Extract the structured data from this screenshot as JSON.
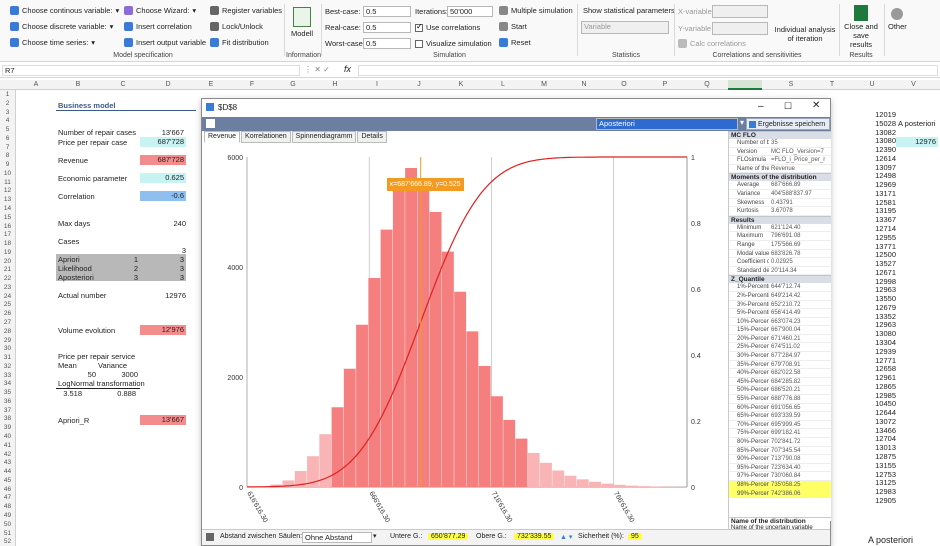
{
  "ribbon": {
    "model_spec": {
      "continuous": "Choose continous variable:",
      "discrete": "Choose discrete variable:",
      "time_series": "Choose time series:",
      "wizard": "Choose Wizard:",
      "insert_correlation": "Insert correlation",
      "insert_output": "Insert output variable",
      "register": "Register variables",
      "lock": "Lock/Unlock",
      "fit": "Fit distribution",
      "label": "Model specification"
    },
    "information": {
      "model": "Modell",
      "label": "Information"
    },
    "simulation": {
      "best_case_label": "Best-case:",
      "best_case": "0.5",
      "real_case_label": "Real-case:",
      "real_case": "0.5",
      "worst_case_label": "Worst-case:",
      "worst_case": "0.5",
      "iterations_label": "Iterations:",
      "iterations": "50'000",
      "use_corr": "Use correlations",
      "visualize": "Visualize simulation",
      "multiple": "Multiple simulation",
      "start": "Start",
      "reset": "Reset",
      "label": "Simulation"
    },
    "statistics": {
      "show_params": "Show statistical parameters",
      "variable_ph": "Variable",
      "label": "Statistics"
    },
    "corr": {
      "x_var": "X-variable",
      "y_var": "Y-variable",
      "calc": "Calc correlations",
      "label": "Correlations and sensitivities"
    },
    "results": {
      "individual": "Individual analysis of iteration",
      "close_save": "Close and save results",
      "other": "Other",
      "label": "Results"
    }
  },
  "formula_bar": {
    "name_box": "R7",
    "fx": "fx",
    "value": ""
  },
  "columns": [
    "A",
    "B",
    "C",
    "D",
    "E",
    "F",
    "G",
    "H",
    "I",
    "J",
    "K",
    "L",
    "M",
    "N",
    "O",
    "P",
    "Q",
    "R",
    "S",
    "T",
    "U",
    "V"
  ],
  "rows": [
    "1",
    "2",
    "3",
    "4",
    "5",
    "6",
    "7",
    "8",
    "9",
    "10",
    "11",
    "12",
    "13",
    "14",
    "15",
    "16",
    "17",
    "18",
    "19",
    "20",
    "21",
    "22",
    "23",
    "24",
    "25",
    "26",
    "27",
    "28",
    "29",
    "30",
    "31",
    "32",
    "33",
    "34",
    "35",
    "36",
    "37",
    "38",
    "39",
    "40",
    "41",
    "42",
    "43",
    "44",
    "45",
    "46",
    "47",
    "48",
    "49",
    "50",
    "51",
    "52"
  ],
  "sheet": {
    "title": "Business model",
    "repair_cases_label": "Number of repair cases",
    "repair_cases": "13'667",
    "price_label": "Price per repair case",
    "price": "687'728",
    "revenue_label": "Revenue",
    "revenue": "687'728",
    "econ_label": "Economic parameter",
    "econ": "0.625",
    "corr_label": "Correlation",
    "corr": "-0.6",
    "max_days_label": "Max days",
    "max_days": "240",
    "cases_label": "Cases",
    "cases_val": "3",
    "apriori": "Apriori",
    "apriori_a": "1",
    "apriori_b": "3",
    "likelihood": "Likelihood",
    "likelihood_a": "2",
    "likelihood_b": "3",
    "aposteriori": "Aposteriori",
    "aposteriori_a": "3",
    "aposteriori_b": "3",
    "actual_label": "Actual number",
    "actual": "12976",
    "volume_label": "Volume evolution",
    "volume": "12'976",
    "price_service_label": "Price per repair service",
    "mean_label": "Mean",
    "variance_label": "Variance",
    "mean": "50",
    "variance": "3000",
    "lognormal_label": "LogNormal transformation",
    "ln_a": "3.518",
    "ln_b": "0.888",
    "apriori_r_label": "Apriori_R",
    "apriori_r": "13'667",
    "u_col": [
      "12019",
      "15028",
      "13082",
      "13080",
      "12390",
      "12614",
      "13097",
      "12498",
      "12969",
      "13171",
      "12581",
      "13195",
      "13367",
      "12714",
      "12955",
      "13771",
      "12500",
      "13527",
      "12671",
      "12998",
      "12963",
      "13550",
      "12679",
      "13352",
      "12963",
      "13080",
      "13304",
      "12939",
      "12771",
      "12658",
      "12961",
      "12865",
      "12985",
      "10450",
      "12644",
      "13072",
      "13466",
      "12704",
      "13013",
      "12875",
      "13155",
      "12753",
      "13125",
      "12983",
      "12905"
    ],
    "v4": "A posteriori",
    "v7": "12976",
    "v_bottom": "A posteriori"
  },
  "dialog": {
    "title": "$D$8",
    "combo": "Aposteriori",
    "save_btn": "Ergebnisse speichern",
    "tabs": [
      "Revenue",
      "Korrelationen",
      "Spinnendiagramm",
      "Details"
    ],
    "tooltip": "x=687'666.89, y=0.525",
    "panel": {
      "sec_flo": "MC FLO",
      "flo_rows": [
        {
          "k": "Number of bi",
          "v": "35"
        },
        {
          "k": "Version",
          "v": "MC FLO_Version=7"
        },
        {
          "k": "FLOsimula",
          "v": "=FLO_i_Price_per_r"
        },
        {
          "k": "Name of the",
          "v": "Revenue"
        }
      ],
      "sec_moments": "Moments of the distribution",
      "moment_rows": [
        {
          "k": "Average",
          "v": "687'666.89"
        },
        {
          "k": "Variance",
          "v": "404'588'837.97"
        },
        {
          "k": "Skewness",
          "v": "0.43791"
        },
        {
          "k": "Kurtosis",
          "v": "3.67078"
        }
      ],
      "sec_results": "Results",
      "result_rows": [
        {
          "k": "Minimum",
          "v": "621'124.40"
        },
        {
          "k": "Maximum",
          "v": "796'691.08"
        },
        {
          "k": "Range",
          "v": "175'566.69"
        },
        {
          "k": "Modal value",
          "v": "683'826.78"
        },
        {
          "k": "Coefficient of",
          "v": "0.02925"
        },
        {
          "k": "Standard dev",
          "v": "20'114.34"
        }
      ],
      "sec_quantile": "Z_Quantile",
      "quantile_rows": [
        {
          "k": "1%-Percentil",
          "v": "644'712.74"
        },
        {
          "k": "2%-Percentil",
          "v": "649'214.42"
        },
        {
          "k": "3%-Percentil",
          "v": "652'210.72"
        },
        {
          "k": "5%-Percentil",
          "v": "656'414.49"
        },
        {
          "k": "10%-Percentil",
          "v": "663'074.23"
        },
        {
          "k": "15%-Percentil",
          "v": "667'900.04"
        },
        {
          "k": "20%-Percentil",
          "v": "671'460.21"
        },
        {
          "k": "25%-Percentil",
          "v": "674'511.02"
        },
        {
          "k": "30%-Percentil",
          "v": "677'284.97"
        },
        {
          "k": "35%-Percentil",
          "v": "679'708.91"
        },
        {
          "k": "40%-Percentil",
          "v": "682'022.58"
        },
        {
          "k": "45%-Percentil",
          "v": "684'285.82"
        },
        {
          "k": "50%-Percentil",
          "v": "686'520.21"
        },
        {
          "k": "55%-Percentil",
          "v": "688'776.88"
        },
        {
          "k": "60%-Percentil",
          "v": "691'056.65"
        },
        {
          "k": "65%-Percentil",
          "v": "693'339.59"
        },
        {
          "k": "70%-Percentil",
          "v": "695'999.45"
        },
        {
          "k": "75%-Percentil",
          "v": "699'182.41"
        },
        {
          "k": "80%-Percentil",
          "v": "702'841.72"
        },
        {
          "k": "85%-Percentil",
          "v": "707'345.54"
        },
        {
          "k": "90%-Percentil",
          "v": "713'790.08"
        },
        {
          "k": "95%-Percentil",
          "v": "723'634.40"
        },
        {
          "k": "97%-Percentil",
          "v": "730'060.84"
        },
        {
          "k": "98%-Percentil",
          "v": "735'058.25"
        },
        {
          "k": "99%-Percentil",
          "v": "742'386.06"
        }
      ],
      "name_dist_label": "Name of the distribution",
      "name_dist_desc": "Name of the uncertain variable"
    },
    "status": {
      "gap_label": "Abstand zwischen Säulen:",
      "gap_value": "Ohne Abstand",
      "lower_label": "Untere G.:",
      "lower": "650'877.29",
      "upper_label": "Obere G.:",
      "upper": "732'339.55",
      "conf_label": "Sicherheit (%):",
      "conf": "95"
    }
  },
  "chart_data": {
    "type": "bar",
    "title": "",
    "xlabel": "",
    "ylabel": "",
    "ylim": [
      0,
      6000
    ],
    "y2lim": [
      0,
      1
    ],
    "xlim": [
      616616.3,
      796616.3
    ],
    "y_ticks": [
      "0",
      "2000",
      "4000",
      "6000"
    ],
    "y2_ticks": [
      "0",
      "0.2",
      "0.4",
      "0.6",
      "0.8",
      "1"
    ],
    "x_ticks": [
      "616'616.30",
      "666'616.30",
      "716'616.30",
      "766'616.30"
    ],
    "x_tick_values": [
      616616.3,
      666616.3,
      716616.3,
      766616.3
    ],
    "bin_start": 621124.4,
    "bin_width": 5016.2,
    "values": [
      15,
      45,
      120,
      290,
      560,
      960,
      1450,
      2150,
      2950,
      3800,
      4680,
      5420,
      5800,
      5600,
      5000,
      4280,
      3550,
      2830,
      2200,
      1650,
      1220,
      880,
      620,
      440,
      300,
      205,
      140,
      95,
      60,
      40,
      25,
      15,
      10,
      6,
      4
    ],
    "lower_bound": 650877.29,
    "upper_bound": 732339.55,
    "marker_x": 687666.89,
    "marker_y": 0.525,
    "cdf_mean": 687666.89,
    "cdf_sd": 20114.34,
    "colors": {
      "bar_in": "#f57f7f",
      "bar_out": "#f9b5b5",
      "cdf": "#e02020",
      "marker": "#f0a020"
    }
  }
}
